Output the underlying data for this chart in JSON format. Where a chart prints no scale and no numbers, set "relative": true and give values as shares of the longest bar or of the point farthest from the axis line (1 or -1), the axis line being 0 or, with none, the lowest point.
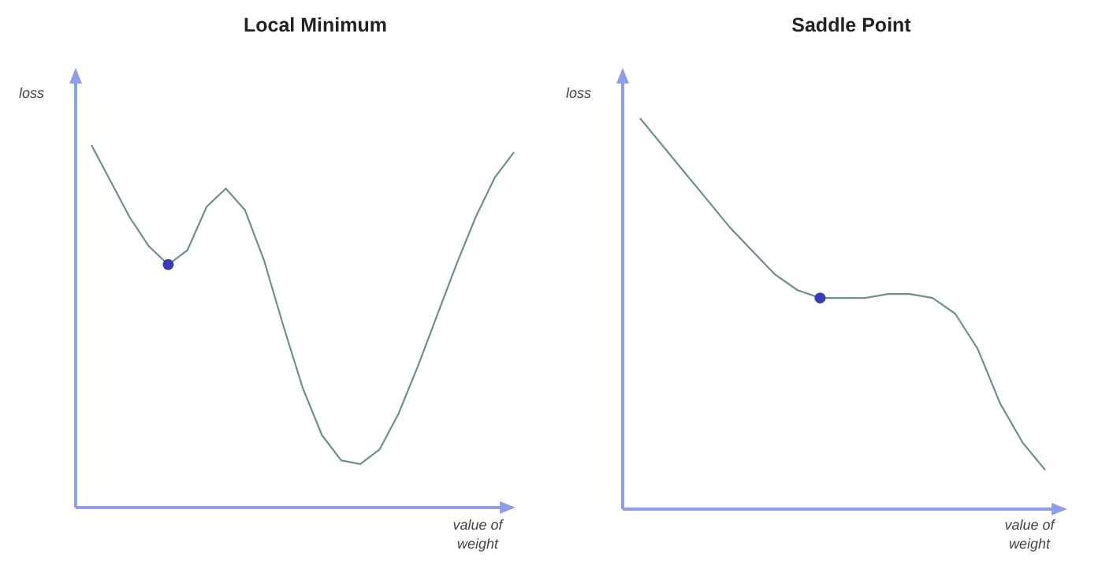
{
  "chart_data": [
    {
      "type": "line",
      "title": "Local Minimum",
      "xlabel": "value of weight",
      "ylabel": "loss",
      "relative": true,
      "categories": [
        null,
        null,
        null,
        null,
        null,
        null,
        null,
        null,
        null,
        null,
        null,
        null,
        null,
        null,
        null,
        null,
        null,
        null,
        null,
        null,
        null,
        null,
        null
      ],
      "series": [
        {
          "color": "#6e8f90",
          "values": [
            1,
            0.9,
            0.8,
            0.72,
            0.67,
            0.71,
            0.83,
            0.88,
            0.82,
            0.68,
            0.5,
            0.33,
            0.2,
            0.13,
            0.12,
            0.16,
            0.26,
            0.39,
            0.53,
            0.67,
            0.8,
            0.91,
            0.98
          ]
        }
      ]
    },
    {
      "type": "line",
      "title": "Saddle Point",
      "xlabel": "value of weight",
      "ylabel": "loss",
      "relative": true,
      "categories": [
        null,
        null,
        null,
        null,
        null,
        null,
        null,
        null,
        null,
        null,
        null,
        null,
        null,
        null,
        null,
        null,
        null,
        null,
        null
      ],
      "series": [
        {
          "color": "#6e8f90",
          "values": [
            1,
            0.93,
            0.86,
            0.79,
            0.72,
            0.66,
            0.6,
            0.56,
            0.54,
            0.54,
            0.54,
            0.55,
            0.55,
            0.54,
            0.5,
            0.41,
            0.27,
            0.17,
            0.1
          ]
        }
      ]
    }
  ]
}
